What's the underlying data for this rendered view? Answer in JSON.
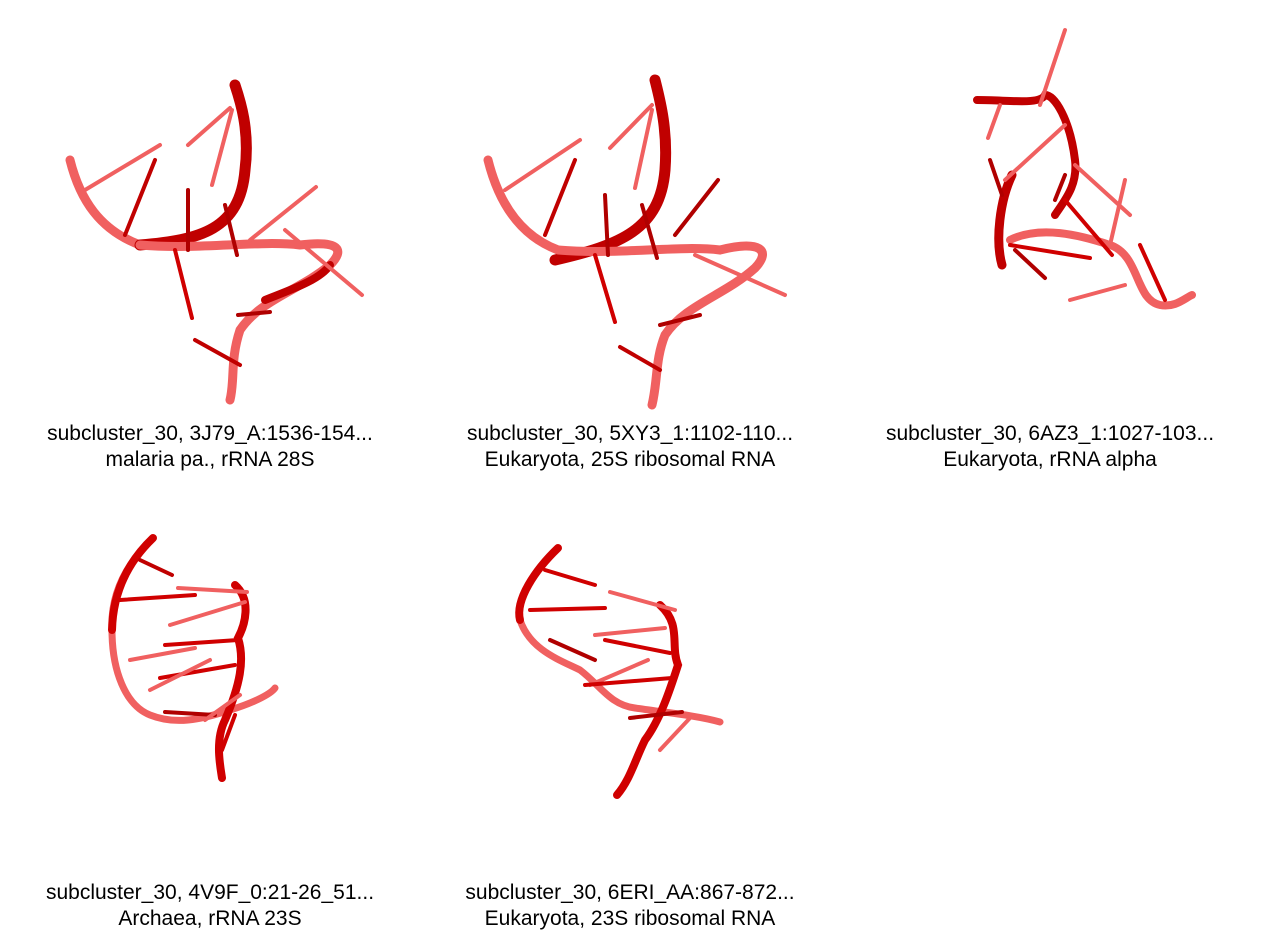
{
  "colors": {
    "strand_dark": "#b00000",
    "strand": "#e00000",
    "strand_light": "#f06060",
    "background": "#ffffff"
  },
  "panels": [
    {
      "id": "3J79",
      "title": "subcluster_30, 3J79_A:1536-154...",
      "subtitle": "malaria pa., rRNA 28S"
    },
    {
      "id": "5XY3",
      "title": "subcluster_30, 5XY3_1:1102-110...",
      "subtitle": "Eukaryota, 25S ribosomal RNA"
    },
    {
      "id": "6AZ3",
      "title": "subcluster_30, 6AZ3_1:1027-103...",
      "subtitle": "Eukaryota, rRNA alpha"
    },
    {
      "id": "4V9F",
      "title": "subcluster_30, 4V9F_0:21-26_51...",
      "subtitle": "Archaea, rRNA 23S"
    },
    {
      "id": "6ERI",
      "title": "subcluster_30, 6ERI_AA:867-872...",
      "subtitle": "Eukaryota, 23S ribosomal RNA"
    }
  ]
}
